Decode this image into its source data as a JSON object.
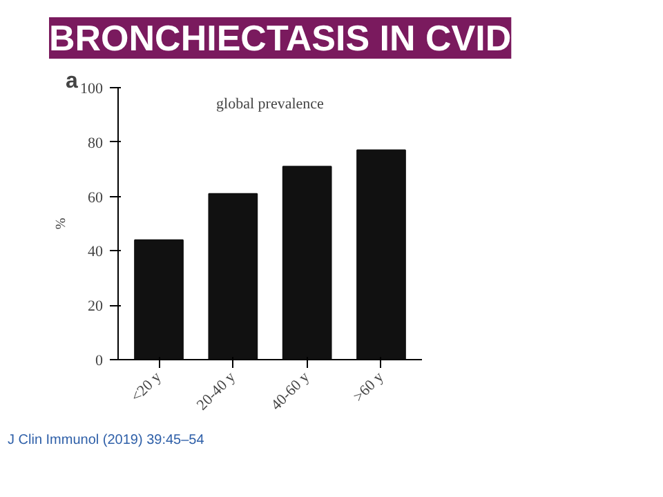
{
  "chart_data": {
    "type": "bar",
    "title": "BRONCHIECTASIS IN CVID",
    "subtitle": "global prevalence",
    "ylabel": "%",
    "categories": [
      "<20 y",
      "20-40 y",
      "40-60 y",
      ">60 y"
    ],
    "values": [
      44,
      61,
      71,
      77
    ],
    "color": "#111111",
    "ylim": [
      0,
      100
    ],
    "yticks": [
      0,
      20,
      40,
      60,
      80,
      100
    ],
    "grid": false,
    "annotations": [
      "a",
      "J Clin Immunol (2019) 39:45–54"
    ]
  }
}
